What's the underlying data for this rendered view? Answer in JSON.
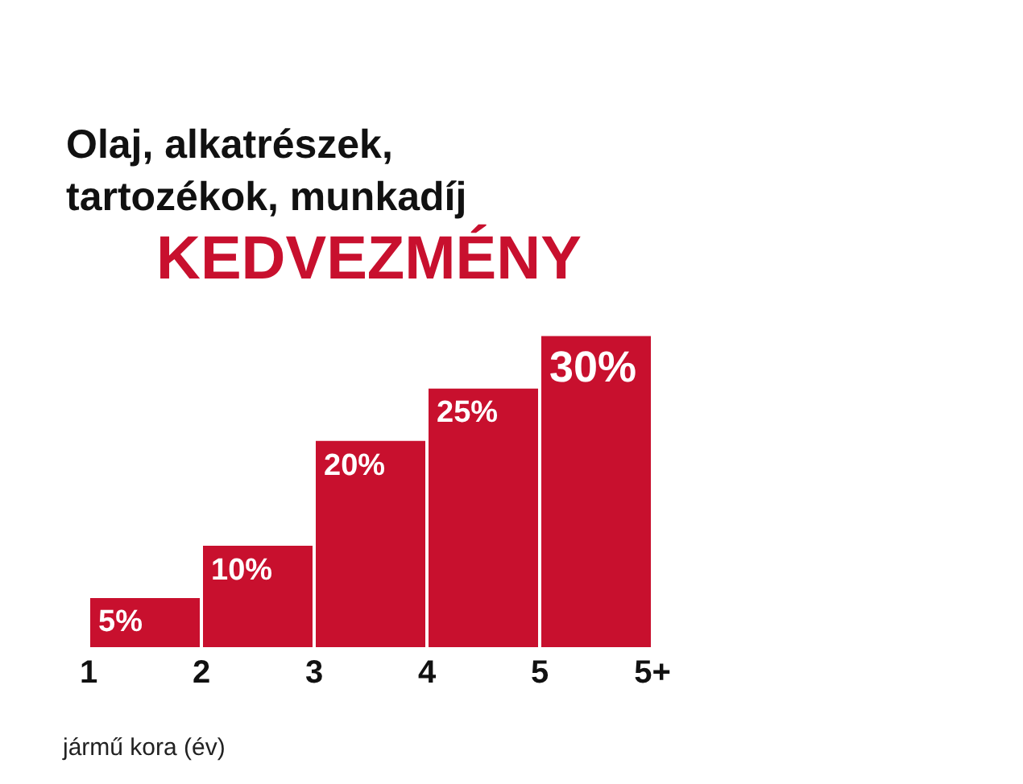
{
  "chart_data": {
    "type": "bar",
    "title": "Olaj, alkatrészek,\ntartozékok, munkadíj",
    "subtitle": "KEDVEZMÉNY",
    "xlabel": "jármű kora (év)",
    "categories": [
      "1",
      "2",
      "3",
      "4",
      "5",
      "5+"
    ],
    "values": [
      5,
      10,
      20,
      25,
      30,
      null
    ],
    "value_labels": [
      "5%",
      "10%",
      "20%",
      "25%",
      "30%",
      null
    ],
    "color": "#c8102e",
    "tick_labels": "x",
    "grid": false,
    "legend": false
  }
}
